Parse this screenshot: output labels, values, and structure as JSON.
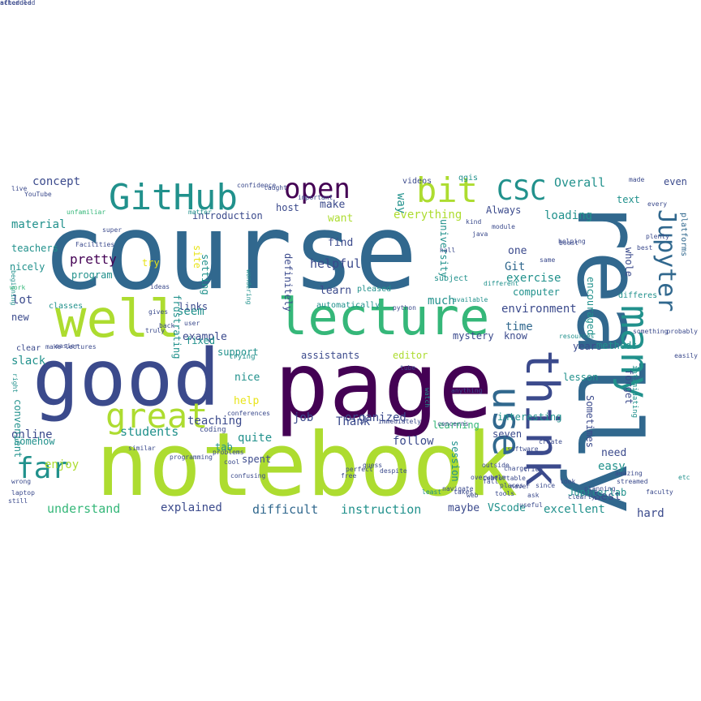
{
  "colors": {
    "background": "#ffffff",
    "dark_purple": "#440154",
    "indigo": "#3b4a8c",
    "steel_blue": "#31688e",
    "teal": "#21918c",
    "sea_green": "#35b779",
    "lime": "#addc30",
    "yellow": "#e8e419"
  },
  "words": [
    {
      "text": "course",
      "color": "steel_blue"
    },
    {
      "text": "notebook",
      "color": "lime"
    },
    {
      "text": "good",
      "color": "indigo"
    },
    {
      "text": "page",
      "color": "dark_purple"
    },
    {
      "text": "really",
      "color": "steel_blue"
    },
    {
      "text": "lecture",
      "color": "sea_green"
    },
    {
      "text": "well",
      "color": "lime"
    },
    {
      "text": "think",
      "color": "indigo"
    },
    {
      "text": "use",
      "color": "steel_blue"
    },
    {
      "text": "many",
      "color": "teal"
    },
    {
      "text": "GitHub",
      "color": "teal"
    },
    {
      "text": "great",
      "color": "lime"
    },
    {
      "text": "bit",
      "color": "lime"
    },
    {
      "text": "CSC",
      "color": "teal"
    },
    {
      "text": "open",
      "color": "dark_purple"
    },
    {
      "text": "far",
      "color": "teal"
    },
    {
      "text": "Jupyter",
      "color": "steel_blue"
    },
    {
      "text": "environment",
      "color": "indigo"
    },
    {
      "text": "students",
      "color": "teal"
    },
    {
      "text": "helpful",
      "color": "indigo"
    },
    {
      "text": "exercise",
      "color": "teal"
    },
    {
      "text": "understand",
      "color": "sea_green"
    },
    {
      "text": "difficult",
      "color": "steel_blue"
    },
    {
      "text": "instruction",
      "color": "teal"
    },
    {
      "text": "explained",
      "color": "indigo"
    },
    {
      "text": "excellent",
      "color": "teal"
    },
    {
      "text": "teaching",
      "color": "indigo"
    },
    {
      "text": "organized",
      "color": "indigo"
    },
    {
      "text": "follow",
      "color": "indigo"
    },
    {
      "text": "material",
      "color": "teal"
    },
    {
      "text": "concept",
      "color": "indigo"
    },
    {
      "text": "pretty",
      "color": "dark_purple"
    },
    {
      "text": "loading",
      "color": "teal"
    },
    {
      "text": "Overall",
      "color": "teal"
    },
    {
      "text": "Git",
      "color": "steel_blue"
    },
    {
      "text": "time",
      "color": "steel_blue"
    },
    {
      "text": "much",
      "color": "teal"
    },
    {
      "text": "everything",
      "color": "lime"
    },
    {
      "text": "example",
      "color": "indigo"
    },
    {
      "text": "seem",
      "color": "teal"
    },
    {
      "text": "nice",
      "color": "teal"
    },
    {
      "text": "enjoy",
      "color": "lime"
    },
    {
      "text": "quite",
      "color": "teal"
    },
    {
      "text": "online",
      "color": "indigo"
    },
    {
      "text": "job",
      "color": "indigo"
    },
    {
      "text": "Thank",
      "color": "indigo"
    },
    {
      "text": "easy",
      "color": "teal"
    },
    {
      "text": "Best",
      "color": "indigo"
    },
    {
      "text": "maybe",
      "color": "indigo"
    },
    {
      "text": "VScode",
      "color": "teal"
    },
    {
      "text": "hard",
      "color": "indigo"
    },
    {
      "text": "need",
      "color": "indigo"
    },
    {
      "text": "slack",
      "color": "teal"
    },
    {
      "text": "help",
      "color": "yellow"
    },
    {
      "text": "lot",
      "color": "indigo"
    },
    {
      "text": "learn",
      "color": "indigo"
    },
    {
      "text": "make",
      "color": "indigo"
    },
    {
      "text": "want",
      "color": "lime"
    },
    {
      "text": "find",
      "color": "indigo"
    },
    {
      "text": "one",
      "color": "indigo"
    },
    {
      "text": "way",
      "color": "teal"
    },
    {
      "text": "Always",
      "color": "indigo"
    },
    {
      "text": "Jupiterlab",
      "color": "teal"
    },
    {
      "text": "seven",
      "color": "indigo"
    },
    {
      "text": "know",
      "color": "indigo"
    },
    {
      "text": "computer",
      "color": "teal"
    },
    {
      "text": "introduction",
      "color": "indigo"
    },
    {
      "text": "host",
      "color": "indigo"
    },
    {
      "text": "program",
      "color": "teal"
    },
    {
      "text": "nicely",
      "color": "teal"
    },
    {
      "text": "teachers",
      "color": "teal"
    },
    {
      "text": "university",
      "color": "teal"
    },
    {
      "text": "definitely",
      "color": "indigo"
    },
    {
      "text": "links",
      "color": "indigo"
    },
    {
      "text": "support",
      "color": "teal"
    },
    {
      "text": "assistants",
      "color": "indigo"
    },
    {
      "text": "editor",
      "color": "lime"
    },
    {
      "text": "fixed",
      "color": "teal"
    },
    {
      "text": "frustrating",
      "color": "teal"
    },
    {
      "text": "setting",
      "color": "teal"
    },
    {
      "text": "try",
      "color": "yellow"
    },
    {
      "text": "site",
      "color": "yellow"
    },
    {
      "text": "years",
      "color": "indigo"
    },
    {
      "text": "forget",
      "color": "indigo"
    },
    {
      "text": "Sometimes",
      "color": "indigo"
    },
    {
      "text": "text",
      "color": "teal"
    },
    {
      "text": "even",
      "color": "indigo"
    },
    {
      "text": "made",
      "color": "indigo"
    },
    {
      "text": "videos",
      "color": "indigo"
    },
    {
      "text": "qgis",
      "color": "teal"
    },
    {
      "text": "platforms",
      "color": "steel_blue"
    },
    {
      "text": "whole",
      "color": "indigo"
    },
    {
      "text": "encouraged",
      "color": "teal"
    },
    {
      "text": "methods",
      "color": "teal"
    },
    {
      "text": "learning",
      "color": "sea_green"
    },
    {
      "text": "convenient",
      "color": "teal"
    },
    {
      "text": "somehow",
      "color": "teal"
    },
    {
      "text": "tab",
      "color": "teal"
    },
    {
      "text": "interesting",
      "color": "teal"
    },
    {
      "text": "lesson",
      "color": "teal"
    },
    {
      "text": "session",
      "color": "teal"
    },
    {
      "text": "spent",
      "color": "indigo"
    },
    {
      "text": "intimidating",
      "color": "teal"
    },
    {
      "text": "new",
      "color": "indigo"
    },
    {
      "text": "classes",
      "color": "teal"
    },
    {
      "text": "clear",
      "color": "indigo"
    },
    {
      "text": "make",
      "color": "indigo"
    },
    {
      "text": "easier",
      "color": "indigo"
    },
    {
      "text": "lectures",
      "color": "indigo"
    },
    {
      "text": "trying",
      "color": "teal"
    },
    {
      "text": "coding",
      "color": "indigo"
    },
    {
      "text": "right",
      "color": "teal"
    },
    {
      "text": "mystery",
      "color": "indigo"
    },
    {
      "text": "tube",
      "color": "indigo"
    },
    {
      "text": "watch",
      "color": "teal"
    },
    {
      "text": "anything",
      "color": "indigo"
    },
    {
      "text": "resources",
      "color": "teal"
    },
    {
      "text": "something",
      "color": "indigo"
    },
    {
      "text": "differes",
      "color": "teal"
    },
    {
      "text": "amazing",
      "color": "indigo"
    },
    {
      "text": "etc",
      "color": "teal"
    },
    {
      "text": "pleased",
      "color": "teal"
    },
    {
      "text": "subject",
      "color": "teal"
    },
    {
      "text": "automatically",
      "color": "teal"
    },
    {
      "text": "different",
      "color": "teal"
    },
    {
      "text": "python",
      "color": "indigo"
    },
    {
      "text": "available",
      "color": "teal"
    },
    {
      "text": "beginning",
      "color": "teal"
    },
    {
      "text": "wondering",
      "color": "teal"
    },
    {
      "text": "work",
      "color": "sea_green"
    },
    {
      "text": "still",
      "color": "indigo"
    },
    {
      "text": "laptop",
      "color": "indigo"
    },
    {
      "text": "probably",
      "color": "indigo"
    },
    {
      "text": "confidence",
      "color": "indigo"
    },
    {
      "text": "important",
      "color": "indigo"
    },
    {
      "text": "matter",
      "color": "teal"
    },
    {
      "text": "unfamiliar",
      "color": "sea_green"
    },
    {
      "text": "perfect",
      "color": "indigo"
    },
    {
      "text": "free",
      "color": "indigo"
    },
    {
      "text": "despite",
      "color": "indigo"
    },
    {
      "text": "guess",
      "color": "indigo"
    },
    {
      "text": "cool",
      "color": "indigo"
    },
    {
      "text": "streamed",
      "color": "indigo"
    },
    {
      "text": "faculty",
      "color": "indigo"
    },
    {
      "text": "helping",
      "color": "indigo"
    },
    {
      "text": "module",
      "color": "indigo"
    },
    {
      "text": "charge",
      "color": "indigo"
    },
    {
      "text": "Facilities",
      "color": "indigo"
    },
    {
      "text": "YouTube",
      "color": "indigo"
    },
    {
      "text": "every",
      "color": "indigo"
    },
    {
      "text": "least",
      "color": "teal"
    },
    {
      "text": "takes",
      "color": "indigo"
    },
    {
      "text": "never",
      "color": "indigo"
    },
    {
      "text": "best",
      "color": "indigo"
    },
    {
      "text": "easily",
      "color": "indigo"
    },
    {
      "text": "super",
      "color": "indigo"
    },
    {
      "text": "similar",
      "color": "indigo"
    },
    {
      "text": "programming",
      "color": "indigo"
    },
    {
      "text": "problems",
      "color": "indigo"
    },
    {
      "text": "confusing",
      "color": "indigo"
    },
    {
      "text": "wrong",
      "color": "indigo"
    },
    {
      "text": "live",
      "color": "indigo"
    },
    {
      "text": "ideas",
      "color": "indigo"
    },
    {
      "text": "gives",
      "color": "indigo"
    },
    {
      "text": "truly",
      "color": "indigo"
    },
    {
      "text": "back",
      "color": "indigo"
    },
    {
      "text": "user",
      "color": "indigo"
    },
    {
      "text": "outside",
      "color": "indigo"
    },
    {
      "text": "software",
      "color": "indigo"
    },
    {
      "text": "tried",
      "color": "indigo"
    },
    {
      "text": "create",
      "color": "indigo"
    },
    {
      "text": "boost",
      "color": "indigo"
    },
    {
      "text": "same",
      "color": "indigo"
    },
    {
      "text": "taught",
      "color": "indigo"
    },
    {
      "text": "plenty",
      "color": "indigo"
    },
    {
      "text": "immediately",
      "color": "indigo"
    },
    {
      "text": "concerns",
      "color": "indigo"
    },
    {
      "text": "conferences",
      "color": "indigo"
    },
    {
      "text": "navigate",
      "color": "indigo"
    },
    {
      "text": "comfortable",
      "color": "indigo"
    },
    {
      "text": "overwhelm",
      "color": "indigo"
    },
    {
      "text": "kind",
      "color": "indigo"
    },
    {
      "text": "java",
      "color": "indigo"
    },
    {
      "text": "hall",
      "color": "indigo"
    },
    {
      "text": "fall",
      "color": "indigo"
    },
    {
      "text": "places",
      "color": "indigo"
    },
    {
      "text": "ask",
      "color": "indigo"
    },
    {
      "text": "since",
      "color": "indigo"
    },
    {
      "text": "look",
      "color": "indigo"
    },
    {
      "text": "web",
      "color": "indigo"
    },
    {
      "text": "tools",
      "color": "indigo"
    },
    {
      "text": "useful",
      "color": "indigo"
    },
    {
      "text": "clearly",
      "color": "indigo"
    },
    {
      "text": "planning",
      "color": "indigo"
    },
    {
      "text": "scheduled",
      "color": "indigo"
    },
    {
      "text": "attended",
      "color": "indigo"
    },
    {
      "text": "after",
      "color": "indigo"
    }
  ]
}
